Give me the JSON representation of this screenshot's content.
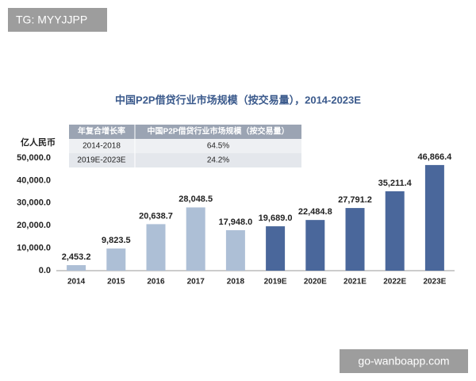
{
  "chart_data": {
    "type": "bar",
    "title": "中国P2P借贷行业市场规模（按交易量），2014-2023E",
    "ylabel": "亿人民币",
    "categories": [
      "2014",
      "2015",
      "2016",
      "2017",
      "2018",
      "2019E",
      "2020E",
      "2021E",
      "2022E",
      "2023E"
    ],
    "values": [
      2453.2,
      9823.5,
      20638.7,
      28048.5,
      17948.0,
      19689.0,
      22484.8,
      27791.2,
      35211.4,
      46866.4
    ],
    "value_labels": [
      "2,453.2",
      "9,823.5",
      "20,638.7",
      "28,048.5",
      "17,948.0",
      "19,689.0",
      "22,484.8",
      "27,791.2",
      "35,211.4",
      "46,866.4"
    ],
    "colors": [
      "#adbfd6",
      "#adbfd6",
      "#adbfd6",
      "#adbfd6",
      "#adbfd6",
      "#4a679b",
      "#4a679b",
      "#4a679b",
      "#4a679b",
      "#4a679b"
    ],
    "ylim": [
      0,
      50000
    ],
    "yticks": [
      {
        "value": 0,
        "label": "0.0"
      },
      {
        "value": 10000,
        "label": "10,000.0"
      },
      {
        "value": 20000,
        "label": "20,000.0"
      },
      {
        "value": 30000,
        "label": "30,000.0"
      },
      {
        "value": 40000,
        "label": "40,000.0"
      },
      {
        "value": 50000,
        "label": "50,000.0"
      }
    ],
    "grid": false,
    "table": {
      "header": [
        "年复合增长率",
        "中国P2P借贷行业市场规模（按交易量）"
      ],
      "rows": [
        [
          "2014-2018",
          "64.5%"
        ],
        [
          "2019E-2023E",
          "24.2%"
        ]
      ]
    }
  },
  "watermarks": [
    "TG: MYYJJPP",
    "go-wanboapp.com"
  ]
}
